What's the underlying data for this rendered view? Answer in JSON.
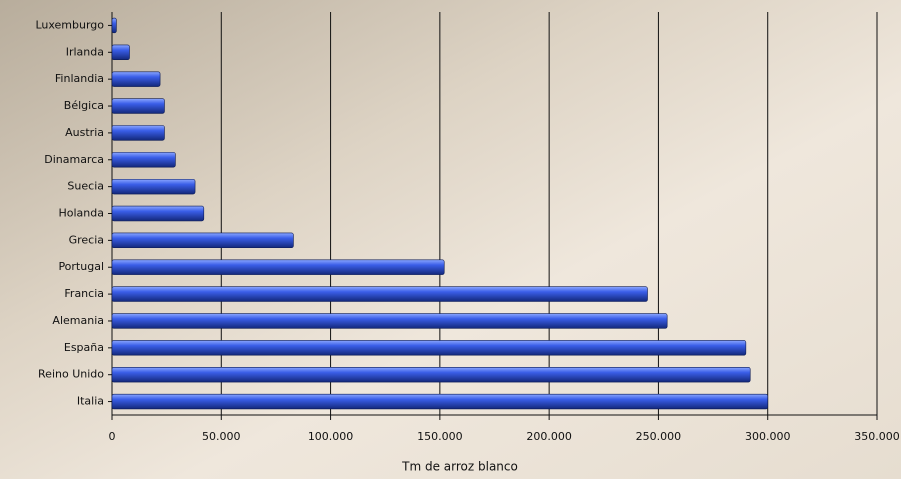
{
  "chart_data": {
    "type": "bar",
    "orientation": "horizontal",
    "x_label": "Tm de arroz blanco",
    "categories": [
      "Luxemburgo",
      "Irlanda",
      "Finlandia",
      "Bélgica",
      "Austria",
      "Dinamarca",
      "Suecia",
      "Holanda",
      "Grecia",
      "Portugal",
      "Francia",
      "Alemania",
      "España",
      "Reino Unido",
      "Italia"
    ],
    "values": [
      2000,
      8000,
      22000,
      24000,
      24000,
      29000,
      38000,
      42000,
      83000,
      152000,
      245000,
      254000,
      290000,
      292000,
      300000
    ],
    "color": "#2f52d8",
    "xlim": [
      0,
      350000
    ],
    "xticks": [
      0,
      {
        "value": 50000,
        "label": "50.000"
      },
      {
        "value": 100000,
        "label": "100.000"
      },
      {
        "value": 150000,
        "label": "150.000"
      },
      {
        "value": 200000,
        "label": "200.000"
      },
      {
        "value": 250000,
        "label": "250.000"
      },
      {
        "value": 300000,
        "label": "300.000"
      },
      {
        "value": 350000,
        "label": "350.000"
      }
    ],
    "grid": true
  }
}
